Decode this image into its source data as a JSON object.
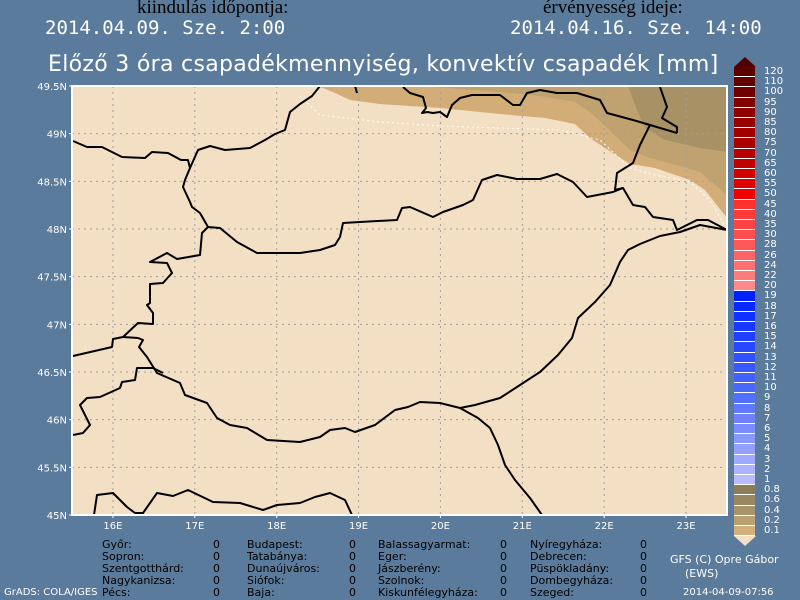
{
  "header": {
    "init_label": "kiindulás időpontja:",
    "init_date": "2014.04.09. Sze. 2:00",
    "valid_label": "érvényesség ideje:",
    "valid_date": "2014.04.16. Sze. 14:00"
  },
  "title": "Előző 3 óra csapadékmennyiség, konvektív csapadék [mm]",
  "map": {
    "lon_range": [
      15.5,
      23.5
    ],
    "lat_range": [
      45,
      49.5
    ],
    "lon_ticks": [
      {
        "value": 16,
        "label": "16E"
      },
      {
        "value": 17,
        "label": "17E"
      },
      {
        "value": 18,
        "label": "18E"
      },
      {
        "value": 19,
        "label": "19E"
      },
      {
        "value": 20,
        "label": "20E"
      },
      {
        "value": 21,
        "label": "21E"
      },
      {
        "value": 22,
        "label": "22E"
      },
      {
        "value": 23,
        "label": "23E"
      }
    ],
    "lat_ticks": [
      {
        "value": 45,
        "label": "45N"
      },
      {
        "value": 45.5,
        "label": "45.5N"
      },
      {
        "value": 46,
        "label": "46N"
      },
      {
        "value": 46.5,
        "label": "46.5N"
      },
      {
        "value": 47,
        "label": "47N"
      },
      {
        "value": 47.5,
        "label": "47.5N"
      },
      {
        "value": 48,
        "label": "48N"
      },
      {
        "value": 48.5,
        "label": "48.5N"
      },
      {
        "value": 49,
        "label": "49N"
      },
      {
        "value": 49.5,
        "label": "49.5N"
      }
    ],
    "colors": {
      "background": "#f3dfc3",
      "p01": "#d3ad78",
      "p02": "#bfa26f",
      "p04": "#a99166",
      "border": "#000000",
      "grid": "#a0a0a0"
    }
  },
  "legend": {
    "top_color": "#500000",
    "bottom_color": "#f3dfc3",
    "items": [
      {
        "label": "120",
        "color": "#5c0000"
      },
      {
        "label": "110",
        "color": "#640000"
      },
      {
        "label": "100",
        "color": "#6e0000"
      },
      {
        "label": "95",
        "color": "#820000"
      },
      {
        "label": "90",
        "color": "#8c0000"
      },
      {
        "label": "85",
        "color": "#960000"
      },
      {
        "label": "80",
        "color": "#a00000"
      },
      {
        "label": "75",
        "color": "#aa0000"
      },
      {
        "label": "70",
        "color": "#b40000"
      },
      {
        "label": "65",
        "color": "#c30000"
      },
      {
        "label": "60",
        "color": "#d20000"
      },
      {
        "label": "55",
        "color": "#e10000"
      },
      {
        "label": "50",
        "color": "#f00000"
      },
      {
        "label": "45",
        "color": "#ff3030"
      },
      {
        "label": "40",
        "color": "#ff3a3a"
      },
      {
        "label": "35",
        "color": "#ff4444"
      },
      {
        "label": "30",
        "color": "#ff4e4e"
      },
      {
        "label": "28",
        "color": "#ff5858"
      },
      {
        "label": "26",
        "color": "#ff6464"
      },
      {
        "label": "24",
        "color": "#ff7070"
      },
      {
        "label": "22",
        "color": "#ff7c7c"
      },
      {
        "label": "20",
        "color": "#ff8888"
      },
      {
        "label": "19",
        "color": "#0020ff"
      },
      {
        "label": "18",
        "color": "#0828ff"
      },
      {
        "label": "17",
        "color": "#1030ff"
      },
      {
        "label": "16",
        "color": "#1838ff"
      },
      {
        "label": "15",
        "color": "#2040ff"
      },
      {
        "label": "14",
        "color": "#2848ff"
      },
      {
        "label": "13",
        "color": "#3050ff"
      },
      {
        "label": "12",
        "color": "#3858ff"
      },
      {
        "label": "11",
        "color": "#4060ff"
      },
      {
        "label": "10",
        "color": "#4868ff"
      },
      {
        "label": "9",
        "color": "#5070ff"
      },
      {
        "label": "8",
        "color": "#6078ff"
      },
      {
        "label": "7",
        "color": "#7080ff"
      },
      {
        "label": "6",
        "color": "#7c8cff"
      },
      {
        "label": "5",
        "color": "#8898ff"
      },
      {
        "label": "4",
        "color": "#94a0ff"
      },
      {
        "label": "3",
        "color": "#a0aaff"
      },
      {
        "label": "2",
        "color": "#acb4ff"
      },
      {
        "label": "1",
        "color": "#b8bcff"
      },
      {
        "label": "0.8",
        "color": "#8c7c55"
      },
      {
        "label": "0.6",
        "color": "#988760"
      },
      {
        "label": "0.4",
        "color": "#a8936a"
      },
      {
        "label": "0.2",
        "color": "#b8a070"
      },
      {
        "label": "0.1",
        "color": "#d4b07c"
      }
    ]
  },
  "stations": [
    [
      {
        "name": "Győr:",
        "value": "0"
      },
      {
        "name": "Sopron:",
        "value": "0"
      },
      {
        "name": "Szentgotthárd:",
        "value": "0"
      },
      {
        "name": "Nagykanizsa:",
        "value": "0"
      },
      {
        "name": "Pécs:",
        "value": "0"
      }
    ],
    [
      {
        "name": "Budapest:",
        "value": "0"
      },
      {
        "name": "Tatabánya:",
        "value": "0"
      },
      {
        "name": "Dunaújváros:",
        "value": "0"
      },
      {
        "name": "Siófok:",
        "value": "0"
      },
      {
        "name": "Baja:",
        "value": "0"
      }
    ],
    [
      {
        "name": "Balassagyarmat:",
        "value": "0"
      },
      {
        "name": "Eger:",
        "value": "0"
      },
      {
        "name": "Jászberény:",
        "value": "0"
      },
      {
        "name": "Szolnok:",
        "value": "0"
      },
      {
        "name": "Kiskunfélegyháza:",
        "value": "0"
      }
    ],
    [
      {
        "name": "Nyíregyháza:",
        "value": "0"
      },
      {
        "name": "Debrecen:",
        "value": "0"
      },
      {
        "name": "Püspökladány:",
        "value": "0"
      },
      {
        "name": "Dombegyháza:",
        "value": "0"
      },
      {
        "name": "Szeged:",
        "value": "0"
      }
    ]
  ],
  "footer": {
    "grads": "GrADS: COLA/IGES",
    "copyright": "GFS (C) Opre Gábor",
    "ews": "(EWS)",
    "timestamp": "2014-04-09-07:56"
  }
}
